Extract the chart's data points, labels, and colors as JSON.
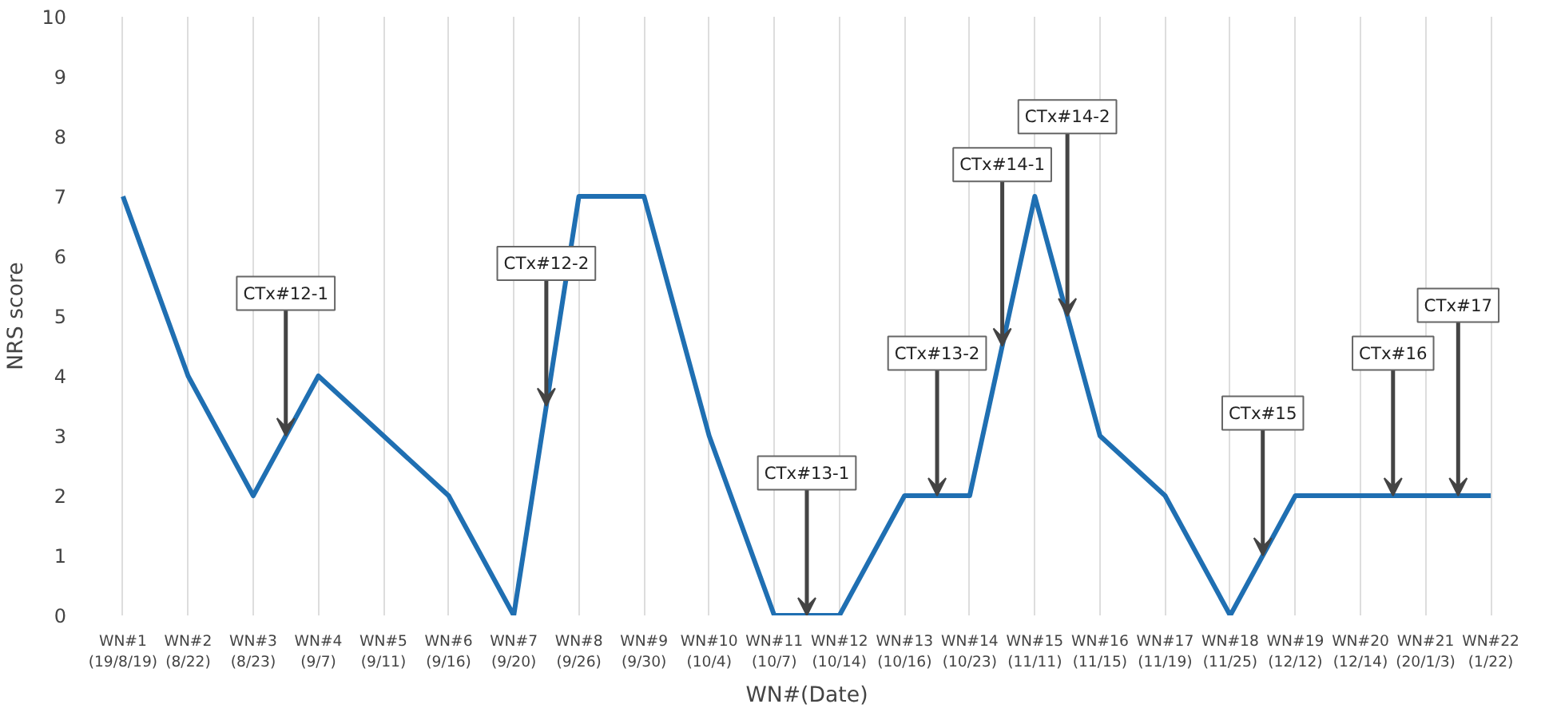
{
  "chart_data": {
    "type": "line",
    "xlabel": "WN#(Date)",
    "ylabel": "NRS score",
    "categories": [
      "WN#1\n(19/8/19)",
      "WN#2\n(8/22)",
      "WN#3\n(8/23)",
      "WN#4\n(9/7)",
      "WN#5\n(9/11)",
      "WN#6\n(9/16)",
      "WN#7\n(9/20)",
      "WN#8\n(9/26)",
      "WN#9\n(9/30)",
      "WN#10\n(10/4)",
      "WN#11\n(10/7)",
      "WN#12\n(10/14)",
      "WN#13\n(10/16)",
      "WN#14\n(10/23)",
      "WN#15\n(11/11)",
      "WN#16\n(11/15)",
      "WN#17\n(11/19)",
      "WN#18\n(11/25)",
      "WN#19\n(12/12)",
      "WN#20\n(12/14)",
      "WN#21\n(20/1/3)",
      "WN#22\n(1/22)"
    ],
    "series": [
      {
        "color": "#1f6fb2",
        "values": [
          7,
          4,
          2,
          4,
          3,
          2,
          0,
          7,
          7,
          3,
          0,
          0,
          2,
          2,
          7,
          3,
          2,
          0,
          2,
          2,
          2,
          2
        ]
      }
    ],
    "ylim": [
      0,
      10
    ],
    "yticks": [
      0,
      1,
      2,
      3,
      4,
      5,
      6,
      7,
      8,
      9,
      10
    ],
    "grid": "x",
    "marker": "none",
    "line_style": "solid",
    "annotations": [
      {
        "text": "CTx#12-1",
        "y": 3
      },
      {
        "text": "CTx#12-2",
        "y": 3.5
      },
      {
        "text": "CTx#13-1",
        "y": 0
      },
      {
        "text": "CTx#13-2",
        "y": 2
      },
      {
        "text": "CTx#14-1",
        "y": 4.5
      },
      {
        "text": "CTx#14-2",
        "y": 5
      },
      {
        "text": "CTx#15",
        "y": 1
      },
      {
        "text": "CTx#16",
        "y": 2
      },
      {
        "text": "CTx#17",
        "y": 2
      }
    ]
  }
}
